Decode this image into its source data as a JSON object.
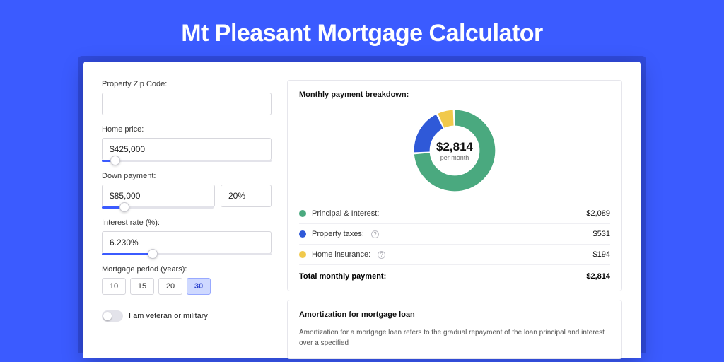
{
  "page": {
    "title": "Mt Pleasant Mortgage Calculator",
    "bg_color": "#3b5bff"
  },
  "form": {
    "zip": {
      "label": "Property Zip Code:",
      "value": ""
    },
    "home_price": {
      "label": "Home price:",
      "value": "$425,000",
      "slider_pct": 8
    },
    "down_payment": {
      "label": "Down payment:",
      "amount": "$85,000",
      "pct": "20%",
      "slider_pct": 20
    },
    "interest": {
      "label": "Interest rate (%):",
      "value": "6.230%",
      "slider_pct": 30
    },
    "period": {
      "label": "Mortgage period (years):",
      "options": [
        "10",
        "15",
        "20",
        "30"
      ],
      "selected": "30"
    },
    "veteran": {
      "label": "I am veteran or military",
      "on": false
    }
  },
  "breakdown": {
    "title": "Monthly payment breakdown:",
    "donut": {
      "amount": "$2,814",
      "sub": "per month",
      "segments": [
        {
          "label": "Principal & Interest:",
          "value": "$2,089",
          "color": "#4aa97f",
          "pct": 74.2
        },
        {
          "label": "Property taxes:",
          "value": "$531",
          "color": "#2f59d8",
          "pct": 18.9,
          "help": true
        },
        {
          "label": "Home insurance:",
          "value": "$194",
          "color": "#f1c94b",
          "pct": 6.9,
          "help": true
        }
      ],
      "stroke_width": 18,
      "gap_deg": 3
    },
    "total": {
      "label": "Total monthly payment:",
      "value": "$2,814"
    }
  },
  "amortization": {
    "title": "Amortization for mortgage loan",
    "body": "Amortization for a mortgage loan refers to the gradual repayment of the loan principal and interest over a specified"
  }
}
